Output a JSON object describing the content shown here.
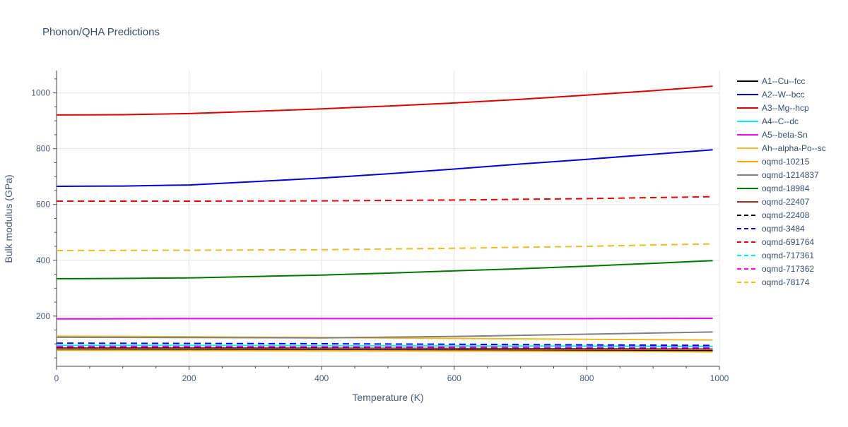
{
  "chart_data": {
    "type": "line",
    "title": "Phonon/QHA Predictions",
    "xlabel": "Temperature (K)",
    "ylabel": "Bulk modulus (GPa)",
    "xlim": [
      0,
      1000
    ],
    "ylim": [
      20,
      1080
    ],
    "xticks": [
      0,
      200,
      400,
      600,
      800,
      1000
    ],
    "yticks": [
      200,
      400,
      600,
      800,
      1000
    ],
    "grid": true,
    "legend_position": "right",
    "series": [
      {
        "name": "A1--Cu--fcc",
        "color": "#000000",
        "dash": "solid",
        "x": [
          0,
          200,
          400,
          600,
          800,
          990
        ],
        "y": [
          80,
          80,
          79,
          78,
          77,
          76
        ]
      },
      {
        "name": "A2--W--bcc",
        "color": "#0000dd",
        "dash": "solid",
        "x": [
          0,
          100,
          200,
          300,
          400,
          500,
          600,
          700,
          800,
          900,
          990
        ],
        "y": [
          665,
          666,
          670,
          682,
          695,
          710,
          727,
          745,
          762,
          780,
          796
        ]
      },
      {
        "name": "A3--Mg--hcp",
        "color": "#dd0000",
        "dash": "solid",
        "x": [
          0,
          100,
          200,
          300,
          400,
          500,
          600,
          700,
          800,
          900,
          990
        ],
        "y": [
          921,
          922,
          926,
          934,
          943,
          953,
          964,
          977,
          992,
          1008,
          1024
        ]
      },
      {
        "name": "A4--C--dc",
        "color": "#00eeee",
        "dash": "solid",
        "x": [
          0,
          200,
          400,
          600,
          800,
          990
        ],
        "y": [
          95,
          95,
          94,
          93,
          92,
          91
        ]
      },
      {
        "name": "A5--beta-Sn",
        "color": "#ee00ee",
        "dash": "solid",
        "x": [
          0,
          200,
          400,
          600,
          800,
          990
        ],
        "y": [
          190,
          191,
          191,
          191,
          191,
          192
        ]
      },
      {
        "name": "Ah--alpha-Po--sc",
        "color": "#eebb22",
        "dash": "solid",
        "x": [
          0,
          200,
          400,
          600,
          800,
          990
        ],
        "y": [
          128,
          126,
          123,
          120,
          117,
          114
        ]
      },
      {
        "name": "oqmd-10215",
        "color": "#ffa500",
        "dash": "solid",
        "x": [
          0,
          200,
          400,
          600,
          800,
          990
        ],
        "y": [
          78,
          77,
          76,
          75,
          74,
          72
        ]
      },
      {
        "name": "oqmd-1214837",
        "color": "#808080",
        "dash": "solid",
        "x": [
          0,
          200,
          400,
          600,
          800,
          990
        ],
        "y": [
          124,
          123,
          122,
          127,
          135,
          143
        ]
      },
      {
        "name": "oqmd-18984",
        "color": "#007700",
        "dash": "solid",
        "x": [
          0,
          100,
          200,
          300,
          400,
          500,
          600,
          700,
          800,
          900,
          990
        ],
        "y": [
          334,
          335,
          337,
          342,
          347,
          354,
          362,
          370,
          379,
          389,
          399
        ]
      },
      {
        "name": "oqmd-22407",
        "color": "#a52a2a",
        "dash": "solid",
        "x": [
          0,
          200,
          400,
          600,
          800,
          990
        ],
        "y": [
          86,
          86,
          85,
          84,
          83,
          82
        ]
      },
      {
        "name": "oqmd-22408",
        "color": "#000000",
        "dash": "dash",
        "x": [
          0,
          200,
          400,
          600,
          800,
          990
        ],
        "y": [
          89,
          89,
          88,
          87,
          86,
          85
        ]
      },
      {
        "name": "oqmd-3484",
        "color": "#0000ff",
        "dash": "dash",
        "x": [
          0,
          200,
          400,
          600,
          800,
          990
        ],
        "y": [
          103,
          102,
          101,
          99,
          97,
          95
        ]
      },
      {
        "name": "oqmd-691764",
        "color": "#ee0000",
        "dash": "dash",
        "x": [
          0,
          200,
          400,
          600,
          800,
          990
        ],
        "y": [
          612,
          612,
          613,
          616,
          621,
          628
        ]
      },
      {
        "name": "oqmd-717361",
        "color": "#00eeee",
        "dash": "dash",
        "x": [
          0,
          200,
          400,
          600,
          800,
          990
        ],
        "y": [
          93,
          93,
          92,
          91,
          90,
          89
        ]
      },
      {
        "name": "oqmd-717362",
        "color": "#ff00ff",
        "dash": "dash",
        "x": [
          0,
          200,
          400,
          600,
          800,
          990
        ],
        "y": [
          91,
          91,
          90,
          89,
          88,
          87
        ]
      },
      {
        "name": "oqmd-78174",
        "color": "#eebb22",
        "dash": "dash",
        "x": [
          0,
          200,
          400,
          600,
          800,
          990
        ],
        "y": [
          435,
          436,
          438,
          443,
          450,
          459
        ]
      }
    ]
  }
}
